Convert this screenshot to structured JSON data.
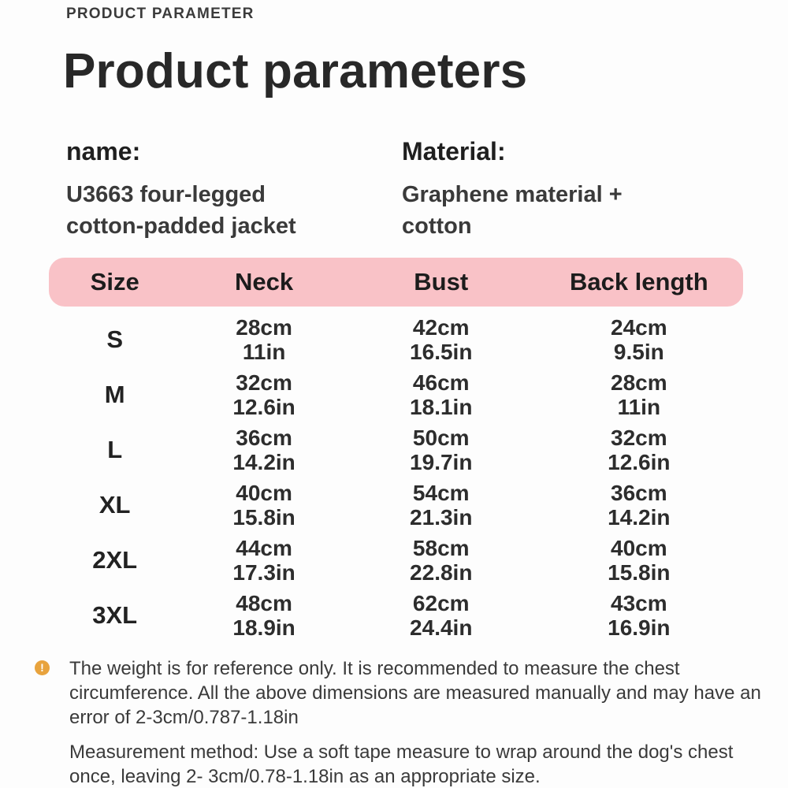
{
  "header": {
    "eyebrow": "PRODUCT PARAMETER",
    "title": "Product parameters"
  },
  "product_info": {
    "name": {
      "label": "name:",
      "value": "U3663 four-legged cotton-padded jacket"
    },
    "material": {
      "label": "Material:",
      "value": "Graphene material + cotton"
    }
  },
  "size_table": {
    "header_color": "#f9c2c7",
    "columns": [
      "Size",
      "Neck",
      "Bust",
      "Back length"
    ],
    "rows": [
      {
        "size": "S",
        "neck_cm": "28cm",
        "neck_in": "11in",
        "bust_cm": "42cm",
        "bust_in": "16.5in",
        "back_cm": "24cm",
        "back_in": "9.5in"
      },
      {
        "size": "M",
        "neck_cm": "32cm",
        "neck_in": "12.6in",
        "bust_cm": "46cm",
        "bust_in": "18.1in",
        "back_cm": "28cm",
        "back_in": "11in"
      },
      {
        "size": "L",
        "neck_cm": "36cm",
        "neck_in": "14.2in",
        "bust_cm": "50cm",
        "bust_in": "19.7in",
        "back_cm": "32cm",
        "back_in": "12.6in"
      },
      {
        "size": "XL",
        "neck_cm": "40cm",
        "neck_in": "15.8in",
        "bust_cm": "54cm",
        "bust_in": "21.3in",
        "back_cm": "36cm",
        "back_in": "14.2in"
      },
      {
        "size": "2XL",
        "neck_cm": "44cm",
        "neck_in": "17.3in",
        "bust_cm": "58cm",
        "bust_in": "22.8in",
        "back_cm": "40cm",
        "back_in": "15.8in"
      },
      {
        "size": "3XL",
        "neck_cm": "48cm",
        "neck_in": "18.9in",
        "bust_cm": "62cm",
        "bust_in": "24.4in",
        "back_cm": "43cm",
        "back_in": "16.9in"
      }
    ]
  },
  "notes": {
    "warning_icon": "exclamation-circle-icon",
    "warning_icon_color": "#e8a33d",
    "warning_icon_glyph": "!",
    "reference_note": "The weight is for reference only. It is recommended to measure the chest circumference. All the above dimensions are measured manually and may have an error of 2-3cm/0.787-1.18in",
    "measurement_note": "Measurement method: Use a soft tape measure to wrap around the dog's chest once, leaving 2- 3cm/0.78-1.18in as an appropriate size."
  }
}
